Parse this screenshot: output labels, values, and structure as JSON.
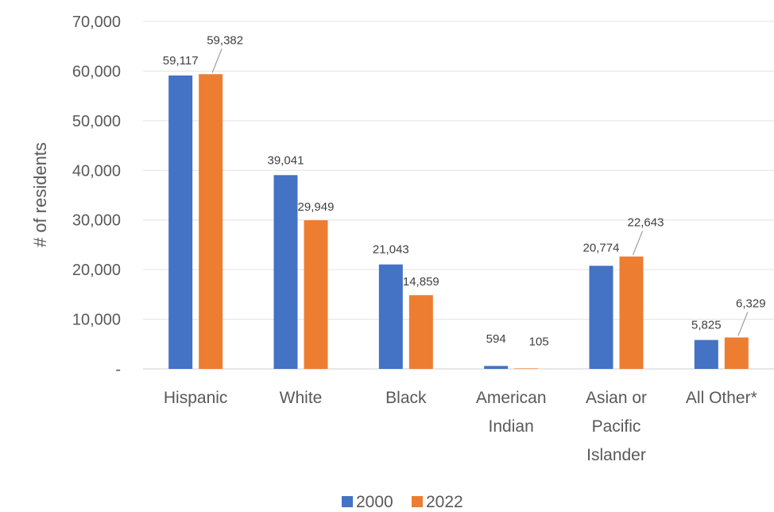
{
  "chart_data": {
    "type": "bar",
    "title": "",
    "xlabel": "",
    "ylabel": "# of residents",
    "ylim": [
      0,
      70000
    ],
    "yticks": [
      0,
      10000,
      20000,
      30000,
      40000,
      50000,
      60000,
      70000
    ],
    "ytick_labels": [
      "-",
      "10,000",
      "20,000",
      "30,000",
      "40,000",
      "50,000",
      "60,000",
      "70,000"
    ],
    "categories": [
      "Hispanic",
      "White",
      "Black",
      "American Indian",
      "Asian or Pacific Islander",
      "All Other*"
    ],
    "category_lines": [
      [
        "Hispanic"
      ],
      [
        "White"
      ],
      [
        "Black"
      ],
      [
        "American",
        "Indian"
      ],
      [
        "Asian or",
        "Pacific",
        "Islander"
      ],
      [
        "All Other*"
      ]
    ],
    "series": [
      {
        "name": "2000",
        "color": "#4472C4",
        "values": [
          59117,
          39041,
          21043,
          594,
          20774,
          5825
        ],
        "labels": [
          "59,117",
          "39,041",
          "21,043",
          "594",
          "20,774",
          "5,825"
        ]
      },
      {
        "name": "2022",
        "color": "#ED7D31",
        "values": [
          59382,
          29949,
          14859,
          105,
          22643,
          6329
        ],
        "labels": [
          "59,382",
          "29,949",
          "14,859",
          "105",
          "22,643",
          "6,329"
        ]
      }
    ],
    "grid": true,
    "legend_position": "bottom"
  }
}
